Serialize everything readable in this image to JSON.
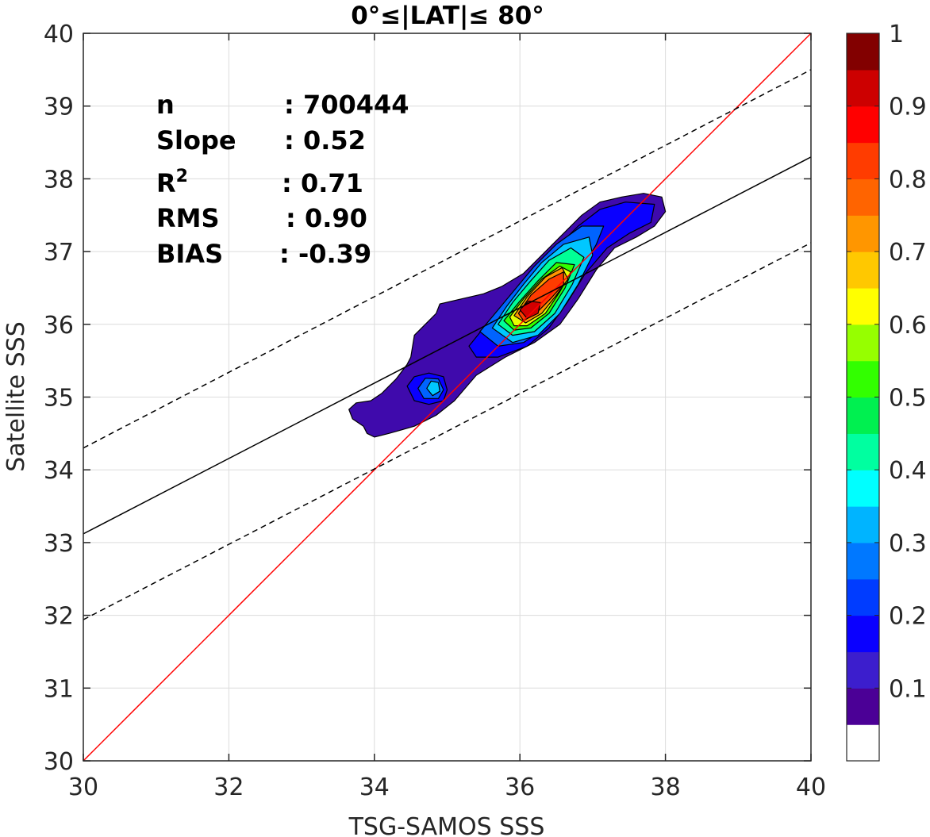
{
  "chart_data": {
    "type": "contour",
    "title": "0°≤|LAT|≤ 80°",
    "xlabel": "TSG-SAMOS SSS",
    "ylabel": "Satellite SSS",
    "xlim": [
      30,
      40
    ],
    "ylim": [
      30,
      40
    ],
    "x_ticks": [
      30,
      32,
      34,
      36,
      38,
      40
    ],
    "y_ticks": [
      30,
      31,
      32,
      33,
      34,
      35,
      36,
      37,
      38,
      39,
      40
    ],
    "grid": true,
    "stats": [
      {
        "label": "n",
        "value": ": 700444"
      },
      {
        "label": "Slope",
        "value": ": 0.52"
      },
      {
        "label": "R",
        "sup": "2",
        "value": ": 0.71"
      },
      {
        "label": "RMS",
        "value": ": 0.90"
      },
      {
        "label": "BIAS",
        "value": ": -0.39"
      }
    ],
    "lines": [
      {
        "name": "one-to-one",
        "color": "#ff0000",
        "style": "solid",
        "points": [
          [
            30,
            30
          ],
          [
            40,
            40
          ]
        ]
      },
      {
        "name": "regression",
        "color": "#000000",
        "style": "solid",
        "points": [
          [
            30,
            33.12
          ],
          [
            40,
            38.3
          ]
        ]
      },
      {
        "name": "upper-bound",
        "color": "#000000",
        "style": "dashed",
        "points": [
          [
            30,
            34.3
          ],
          [
            40,
            39.5
          ]
        ]
      },
      {
        "name": "lower-bound",
        "color": "#000000",
        "style": "dashed",
        "points": [
          [
            30,
            31.94
          ],
          [
            40,
            37.12
          ]
        ]
      }
    ],
    "density_contours": [
      {
        "level": 0.05,
        "color": "#3F0AAC",
        "points": [
          [
            33.65,
            34.83
          ],
          [
            33.75,
            34.92
          ],
          [
            33.95,
            34.95
          ],
          [
            34.1,
            35.05
          ],
          [
            34.3,
            35.25
          ],
          [
            34.45,
            35.45
          ],
          [
            34.5,
            35.55
          ],
          [
            34.55,
            35.85
          ],
          [
            34.75,
            36.05
          ],
          [
            34.85,
            36.15
          ],
          [
            34.9,
            36.28
          ],
          [
            35.2,
            36.35
          ],
          [
            35.5,
            36.42
          ],
          [
            35.75,
            36.52
          ],
          [
            36.05,
            36.7
          ],
          [
            36.3,
            36.95
          ],
          [
            36.6,
            37.25
          ],
          [
            36.85,
            37.5
          ],
          [
            37.1,
            37.68
          ],
          [
            37.4,
            37.75
          ],
          [
            37.7,
            37.8
          ],
          [
            37.95,
            37.75
          ],
          [
            38.0,
            37.55
          ],
          [
            37.85,
            37.35
          ],
          [
            37.6,
            37.2
          ],
          [
            37.3,
            37.05
          ],
          [
            37.05,
            36.75
          ],
          [
            36.8,
            36.35
          ],
          [
            36.55,
            36.0
          ],
          [
            36.2,
            35.75
          ],
          [
            35.8,
            35.55
          ],
          [
            35.4,
            35.3
          ],
          [
            35.1,
            34.95
          ],
          [
            34.85,
            34.75
          ],
          [
            34.55,
            34.6
          ],
          [
            34.2,
            34.5
          ],
          [
            34.0,
            34.45
          ],
          [
            33.9,
            34.5
          ],
          [
            33.85,
            34.6
          ],
          [
            33.7,
            34.7
          ]
        ]
      },
      {
        "level": 0.15,
        "color": "#0A00FF",
        "points": [
          [
            34.45,
            35.15
          ],
          [
            34.55,
            35.28
          ],
          [
            34.75,
            35.33
          ],
          [
            34.95,
            35.28
          ],
          [
            35.0,
            35.1
          ],
          [
            34.95,
            34.95
          ],
          [
            34.75,
            34.9
          ],
          [
            34.55,
            34.95
          ]
        ]
      },
      {
        "level": 0.15,
        "color": "#0A00FF",
        "points": [
          [
            35.3,
            35.7
          ],
          [
            35.5,
            35.95
          ],
          [
            35.75,
            36.2
          ],
          [
            35.95,
            36.45
          ],
          [
            36.2,
            36.75
          ],
          [
            36.5,
            37.05
          ],
          [
            36.8,
            37.35
          ],
          [
            37.1,
            37.58
          ],
          [
            37.45,
            37.68
          ],
          [
            37.85,
            37.65
          ],
          [
            37.8,
            37.4
          ],
          [
            37.5,
            37.25
          ],
          [
            37.2,
            37.05
          ],
          [
            36.9,
            36.7
          ],
          [
            36.65,
            36.3
          ],
          [
            36.4,
            35.95
          ],
          [
            36.1,
            35.7
          ],
          [
            35.7,
            35.55
          ],
          [
            35.4,
            35.55
          ]
        ]
      },
      {
        "level": 0.25,
        "color": "#0064FF",
        "points": [
          [
            34.6,
            35.12
          ],
          [
            34.7,
            35.26
          ],
          [
            34.88,
            35.25
          ],
          [
            34.95,
            35.1
          ],
          [
            34.88,
            34.98
          ],
          [
            34.68,
            34.98
          ]
        ]
      },
      {
        "level": 0.25,
        "color": "#0064FF",
        "points": [
          [
            35.45,
            35.9
          ],
          [
            35.7,
            36.2
          ],
          [
            35.95,
            36.5
          ],
          [
            36.2,
            36.8
          ],
          [
            36.5,
            37.1
          ],
          [
            36.85,
            37.35
          ],
          [
            37.15,
            37.35
          ],
          [
            37.05,
            37.1
          ],
          [
            36.85,
            36.75
          ],
          [
            36.6,
            36.3
          ],
          [
            36.35,
            35.95
          ],
          [
            36.05,
            35.75
          ],
          [
            35.7,
            35.7
          ]
        ]
      },
      {
        "level": 0.35,
        "color": "#00C8FF",
        "points": [
          [
            34.72,
            35.12
          ],
          [
            34.78,
            35.22
          ],
          [
            34.88,
            35.2
          ],
          [
            34.9,
            35.08
          ],
          [
            34.8,
            35.02
          ]
        ]
      },
      {
        "level": 0.35,
        "color": "#00C8FF",
        "points": [
          [
            35.62,
            35.95
          ],
          [
            35.82,
            36.25
          ],
          [
            36.05,
            36.55
          ],
          [
            36.3,
            36.85
          ],
          [
            36.6,
            37.1
          ],
          [
            36.95,
            37.2
          ],
          [
            37.0,
            36.95
          ],
          [
            36.8,
            36.55
          ],
          [
            36.55,
            36.15
          ],
          [
            36.25,
            35.85
          ],
          [
            35.9,
            35.75
          ]
        ]
      },
      {
        "level": 0.45,
        "color": "#00FF96",
        "points": [
          [
            35.7,
            36.0
          ],
          [
            35.9,
            36.3
          ],
          [
            36.15,
            36.6
          ],
          [
            36.4,
            36.88
          ],
          [
            36.7,
            37.05
          ],
          [
            36.88,
            36.92
          ],
          [
            36.72,
            36.55
          ],
          [
            36.48,
            36.15
          ],
          [
            36.2,
            35.9
          ],
          [
            35.9,
            35.85
          ]
        ]
      },
      {
        "level": 0.55,
        "color": "#32FF00",
        "points": [
          [
            35.78,
            36.05
          ],
          [
            36.0,
            36.32
          ],
          [
            36.25,
            36.6
          ],
          [
            36.5,
            36.85
          ],
          [
            36.75,
            36.82
          ],
          [
            36.62,
            36.5
          ],
          [
            36.4,
            36.15
          ],
          [
            36.15,
            35.95
          ],
          [
            35.92,
            35.92
          ]
        ]
      },
      {
        "level": 0.65,
        "color": "#E6FF00",
        "points": [
          [
            35.86,
            36.1
          ],
          [
            36.05,
            36.35
          ],
          [
            36.3,
            36.62
          ],
          [
            36.55,
            36.8
          ],
          [
            36.7,
            36.72
          ],
          [
            36.55,
            36.45
          ],
          [
            36.35,
            36.15
          ],
          [
            36.1,
            35.98
          ],
          [
            35.92,
            35.98
          ]
        ]
      },
      {
        "level": 0.75,
        "color": "#FF9600",
        "points": [
          [
            35.92,
            36.12
          ],
          [
            36.1,
            36.38
          ],
          [
            36.35,
            36.65
          ],
          [
            36.58,
            36.78
          ],
          [
            36.66,
            36.62
          ],
          [
            36.5,
            36.4
          ],
          [
            36.3,
            36.15
          ],
          [
            36.08,
            36.02
          ]
        ]
      },
      {
        "level": 0.85,
        "color": "#FF3C00",
        "points": [
          [
            35.98,
            36.15
          ],
          [
            36.15,
            36.4
          ],
          [
            36.4,
            36.62
          ],
          [
            36.6,
            36.72
          ],
          [
            36.6,
            36.55
          ],
          [
            36.42,
            36.35
          ],
          [
            36.22,
            36.15
          ],
          [
            36.05,
            36.05
          ]
        ]
      },
      {
        "level": 0.95,
        "color": "#D20000",
        "points": [
          [
            36.0,
            36.2
          ],
          [
            36.12,
            36.32
          ],
          [
            36.28,
            36.3
          ],
          [
            36.25,
            36.15
          ],
          [
            36.1,
            36.08
          ]
        ]
      }
    ],
    "colorbar": {
      "colors": [
        "#ffffff",
        "#4B0096",
        "#3C1ECD",
        "#0A00FF",
        "#003CFF",
        "#0078FF",
        "#00B4FF",
        "#00FFFF",
        "#00FFA0",
        "#00F050",
        "#32FF00",
        "#96FF00",
        "#FFFF00",
        "#FFC800",
        "#FF9600",
        "#FF6400",
        "#FF3C00",
        "#FF0000",
        "#CD0000",
        "#820000"
      ],
      "tick_values": [
        0.1,
        0.2,
        0.3,
        0.4,
        0.5,
        0.6,
        0.7,
        0.8,
        0.9,
        1
      ],
      "tick_labels": [
        "0.1",
        "0.2",
        "0.3",
        "0.4",
        "0.5",
        "0.6",
        "0.7",
        "0.8",
        "0.9",
        "1"
      ]
    }
  }
}
